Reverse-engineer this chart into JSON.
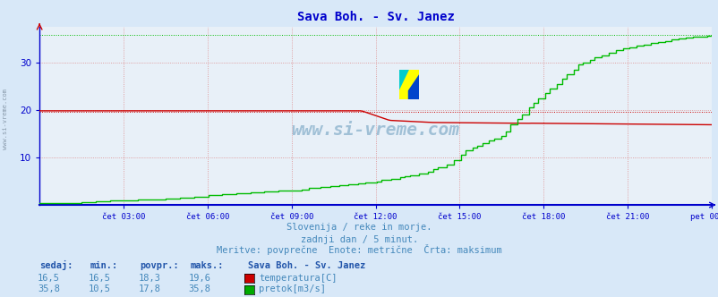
{
  "title": "Sava Boh. - Sv. Janez",
  "bg_color": "#d8e8f8",
  "plot_bg_color": "#e8f0f8",
  "xlabel_ticks": [
    "čet 03:00",
    "čet 06:00",
    "čet 09:00",
    "čet 12:00",
    "čet 15:00",
    "čet 18:00",
    "čet 21:00",
    "pet 00:00"
  ],
  "x_tick_positions": [
    3,
    6,
    9,
    12,
    15,
    18,
    21,
    24
  ],
  "xlim": [
    0,
    24
  ],
  "ylim": [
    0,
    37.5
  ],
  "yticks": [
    10,
    20,
    30
  ],
  "temp_max_line": 19.6,
  "flow_max_line": 35.8,
  "subtitle1": "Slovenija / reke in morje.",
  "subtitle2": "zadnji dan / 5 minut.",
  "subtitle3": "Meritve: povprečne  Enote: metrične  Črta: maksimum",
  "table_headers": [
    "sedaj:",
    "min.:",
    "povpr.:",
    "maks.:"
  ],
  "table_row1": [
    "16,5",
    "16,5",
    "18,3",
    "19,6"
  ],
  "table_row2": [
    "35,8",
    "10,5",
    "17,8",
    "35,8"
  ],
  "legend_title": "Sava Boh. - Sv. Janez",
  "legend_items": [
    "temperatura[C]",
    "pretok[m3/s]"
  ],
  "legend_colors": [
    "#cc0000",
    "#00aa00"
  ],
  "temp_color": "#cc0000",
  "flow_color": "#00bb00",
  "axis_color": "#0000cc",
  "title_color": "#0000cc",
  "text_color": "#4488bb",
  "table_header_color": "#2255aa",
  "watermark": "www.si-vreme.com",
  "grid_color": "#dd8888",
  "bottom_axis_color": "#0000cc"
}
